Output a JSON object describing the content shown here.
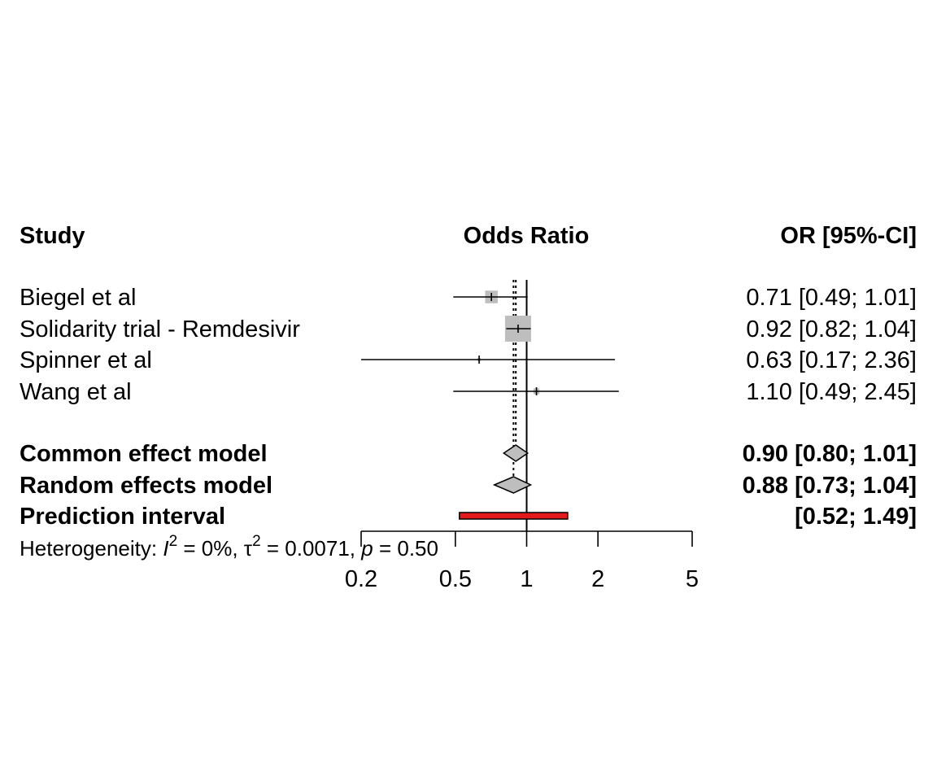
{
  "chart_data": {
    "type": "forest",
    "headers": {
      "study": "Study",
      "effect": "Odds Ratio",
      "ci": "OR [95%-CI]"
    },
    "x_scale": "log",
    "xlim": [
      0.2,
      5
    ],
    "x_ticks": [
      "0.2",
      "0.5",
      "1",
      "2",
      "5"
    ],
    "x_tick_values": [
      0.2,
      0.5,
      1,
      2,
      5
    ],
    "reference_line": 1,
    "studies": [
      {
        "label": "Biegel et al",
        "or": 0.71,
        "lower": 0.49,
        "upper": 1.01,
        "ci_text": "0.71 [0.49; 1.01]",
        "weight": 0.18
      },
      {
        "label": "Solidarity trial - Remdesivir",
        "or": 0.92,
        "lower": 0.82,
        "upper": 1.04,
        "ci_text": "0.92 [0.82; 1.04]",
        "weight": 0.77
      },
      {
        "label": "Spinner et al",
        "or": 0.63,
        "lower": 0.17,
        "upper": 2.36,
        "ci_text": "0.63 [0.17; 2.36]",
        "weight": 0.01
      },
      {
        "label": "Wang et al",
        "or": 1.1,
        "lower": 0.49,
        "upper": 2.45,
        "ci_text": "1.10 [0.49; 2.45]",
        "weight": 0.04
      }
    ],
    "summary": [
      {
        "label": "Common effect model",
        "or": 0.9,
        "lower": 0.8,
        "upper": 1.01,
        "ci_text": "0.90 [0.80; 1.01]"
      },
      {
        "label": "Random effects model",
        "or": 0.88,
        "lower": 0.73,
        "upper": 1.04,
        "ci_text": "0.88 [0.73; 1.04]"
      }
    ],
    "prediction_interval": {
      "label": "Prediction interval",
      "lower": 0.52,
      "upper": 1.49,
      "ci_text": "[0.52; 1.49]"
    },
    "heterogeneity": {
      "prefix": "Heterogeneity: ",
      "i2_symbol": "I",
      "i2_value": " = 0%, ",
      "tau_symbol": "τ",
      "tau_value": " = 0.0071, ",
      "p_symbol": "p",
      "p_value": " = 0.50",
      "superscript": "2"
    },
    "colors": {
      "study_box": "#bebebe",
      "diamond_fill": "#bebebe",
      "prediction_fill": "#e31a1c",
      "line": "#000000"
    }
  }
}
